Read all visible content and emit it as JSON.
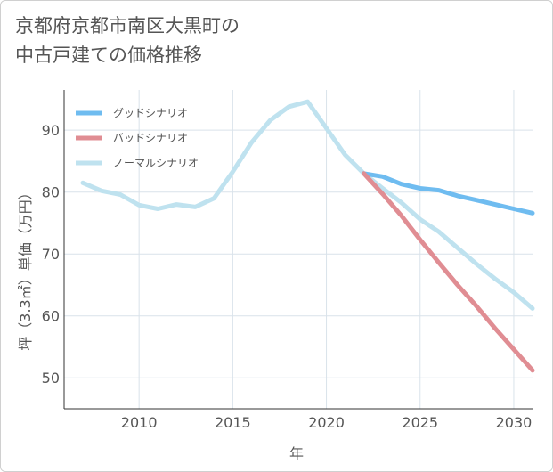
{
  "title_line1": "京都府京都市南区大黒町の",
  "title_line2": "中古戸建ての価格推移",
  "chart_data": {
    "type": "line",
    "title": "京都府京都市南区大黒町の中古戸建ての価格推移",
    "xlabel": "年",
    "ylabel": "坪（3.3㎡）単価（万円）",
    "xlim": [
      2006,
      2031
    ],
    "ylim": [
      45,
      96.5
    ],
    "xticks": [
      2010,
      2015,
      2020,
      2025,
      2030
    ],
    "yticks": [
      50,
      60,
      70,
      80,
      90
    ],
    "grid": true,
    "legend_position": "top-left",
    "series": [
      {
        "name": "グッドシナリオ",
        "color": "#6fbcf0",
        "x": [
          2022,
          2023,
          2024,
          2025,
          2026,
          2027,
          2028,
          2029,
          2030,
          2031
        ],
        "y": [
          83.0,
          82.5,
          81.3,
          80.6,
          80.3,
          79.4,
          78.7,
          78.0,
          77.3,
          76.6
        ]
      },
      {
        "name": "バッドシナリオ",
        "color": "#e08d93",
        "x": [
          2022,
          2023,
          2024,
          2025,
          2026,
          2027,
          2028,
          2029,
          2030,
          2031
        ],
        "y": [
          83.0,
          79.7,
          76.2,
          72.3,
          68.6,
          65.0,
          61.6,
          58.0,
          54.6,
          51.2
        ]
      },
      {
        "name": "ノーマルシナリオ",
        "color": "#bfe2ef",
        "x": [
          2007,
          2008,
          2009,
          2010,
          2011,
          2012,
          2013,
          2014,
          2015,
          2016,
          2017,
          2018,
          2019,
          2020,
          2021,
          2022,
          2023,
          2024,
          2025,
          2026,
          2027,
          2028,
          2029,
          2030,
          2031
        ],
        "y": [
          81.5,
          80.2,
          79.6,
          77.9,
          77.3,
          78.0,
          77.6,
          79.0,
          83.3,
          88.0,
          91.6,
          93.8,
          94.6,
          90.3,
          86.0,
          83.0,
          80.6,
          78.3,
          75.6,
          73.6,
          71.0,
          68.4,
          66.0,
          63.8,
          61.2
        ]
      }
    ]
  }
}
